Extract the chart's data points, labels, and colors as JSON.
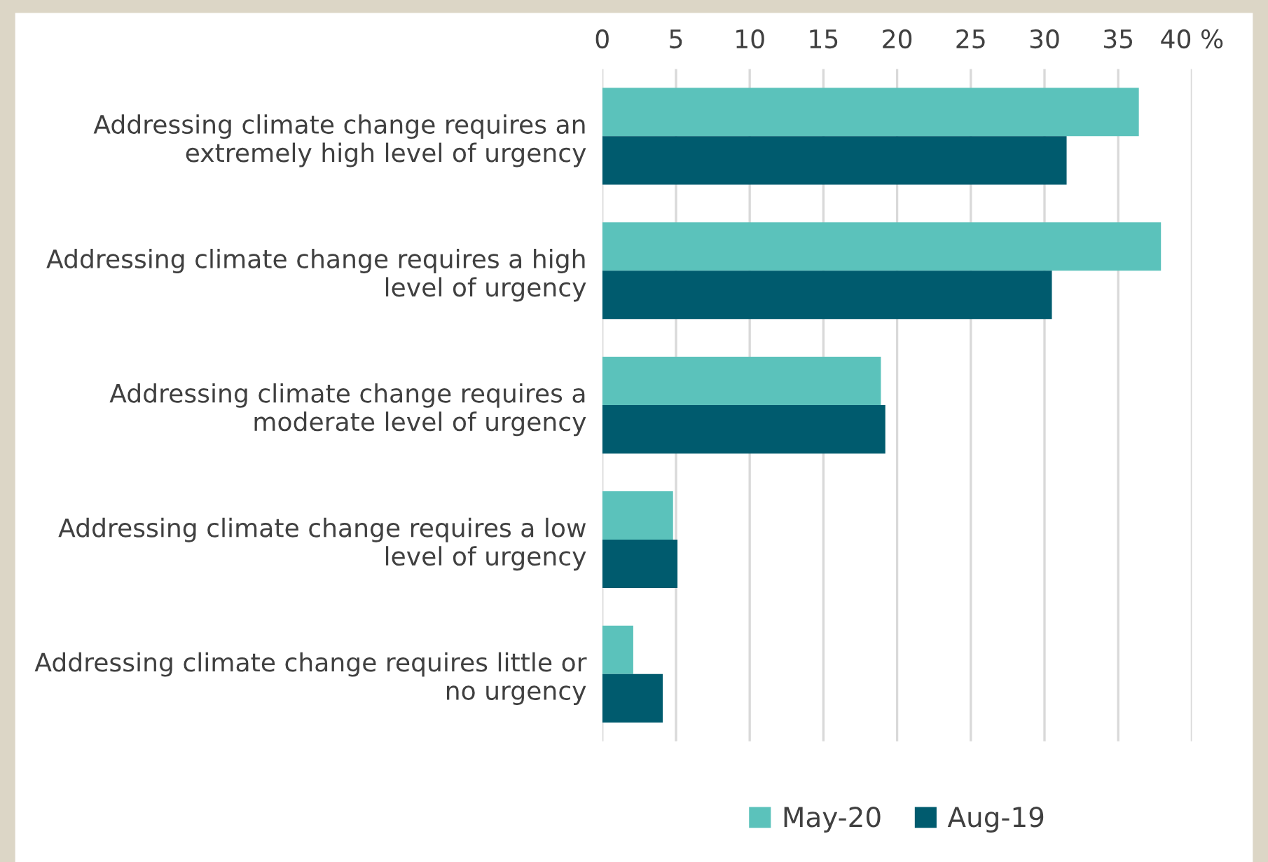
{
  "chart_data": {
    "type": "bar",
    "orientation": "horizontal",
    "categories": [
      "Addressing climate change requires an extremely high level of urgency",
      "Addressing climate change requires a high level of urgency",
      "Addressing climate change requires a moderate level of urgency",
      "Addressing climate change requires a low level of urgency",
      "Addressing climate change requires little or no urgency"
    ],
    "series": [
      {
        "name": "May-20",
        "color": "#5bc2bb",
        "values": [
          36.4,
          37.9,
          18.9,
          4.8,
          2.1
        ]
      },
      {
        "name": "Aug-19",
        "color": "#005b6e",
        "values": [
          31.5,
          30.5,
          19.2,
          5.1,
          4.1
        ]
      }
    ],
    "xlim": [
      0,
      40
    ],
    "xticks": [
      0,
      5,
      10,
      15,
      20,
      25,
      30,
      35,
      {
        "value": 40,
        "label": "40 %"
      }
    ],
    "grid": "x",
    "legend": "bottom"
  }
}
